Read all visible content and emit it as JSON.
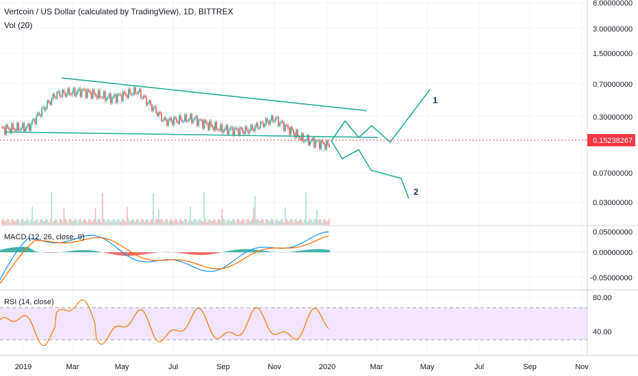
{
  "header": {
    "title": "Vertcoin / US Dollar (calculated by TradingView), 1D, BITTREX",
    "volume_label": "Vol (20)"
  },
  "macd": {
    "label": "MACD (12, 26, close, 9)"
  },
  "rsi": {
    "label": "RSI (14, close)"
  },
  "price_axis": {
    "ticks": [
      "6.00000000",
      "3.00000000",
      "1.50000000",
      "0.70000000",
      "0.30000000",
      "0.07000000",
      "0.03000000"
    ],
    "current_price": "0.15238267",
    "current_price_color": "#f23645"
  },
  "macd_axis": {
    "ticks": [
      "0.05000000",
      "0.00000000",
      "-0.05000000"
    ]
  },
  "rsi_axis": {
    "ticks": [
      "80.00",
      "40.00"
    ]
  },
  "time_axis": {
    "labels": [
      "2019",
      "Mar",
      "May",
      "Jul",
      "Sep",
      "Nov",
      "2020",
      "Mar",
      "May",
      "Jul",
      "Sep",
      "Nov"
    ]
  },
  "annotations": {
    "wave1": "1",
    "wave2": "2"
  },
  "colors": {
    "up": "#26a69a",
    "down": "#ef5350",
    "trendline": "#22ab94",
    "macd_line": "#2196f3",
    "signal_line": "#ff6d00",
    "rsi_line": "#f57c00",
    "rsi_band": "#f3e5ff"
  },
  "chart_data": {
    "type": "line",
    "title": "Vertcoin / US Dollar (calculated by TradingView), 1D, BITTREX",
    "xlabel": "",
    "ylabel": "",
    "scale": "log",
    "x": [
      "2019-01",
      "2019-02",
      "2019-03",
      "2019-04",
      "2019-05",
      "2019-06",
      "2019-07",
      "2019-08",
      "2019-09",
      "2019-10",
      "2019-11",
      "2019-12",
      "2020-01"
    ],
    "series": [
      {
        "values": [
          0.23,
          0.24,
          0.55,
          0.6,
          0.5,
          0.6,
          0.28,
          0.3,
          0.23,
          0.22,
          0.3,
          0.18,
          0.152
        ]
      }
    ],
    "current_price": 0.15238267,
    "ylim": [
      0.02,
      6.0
    ],
    "grid": true,
    "legend": "top-left"
  }
}
